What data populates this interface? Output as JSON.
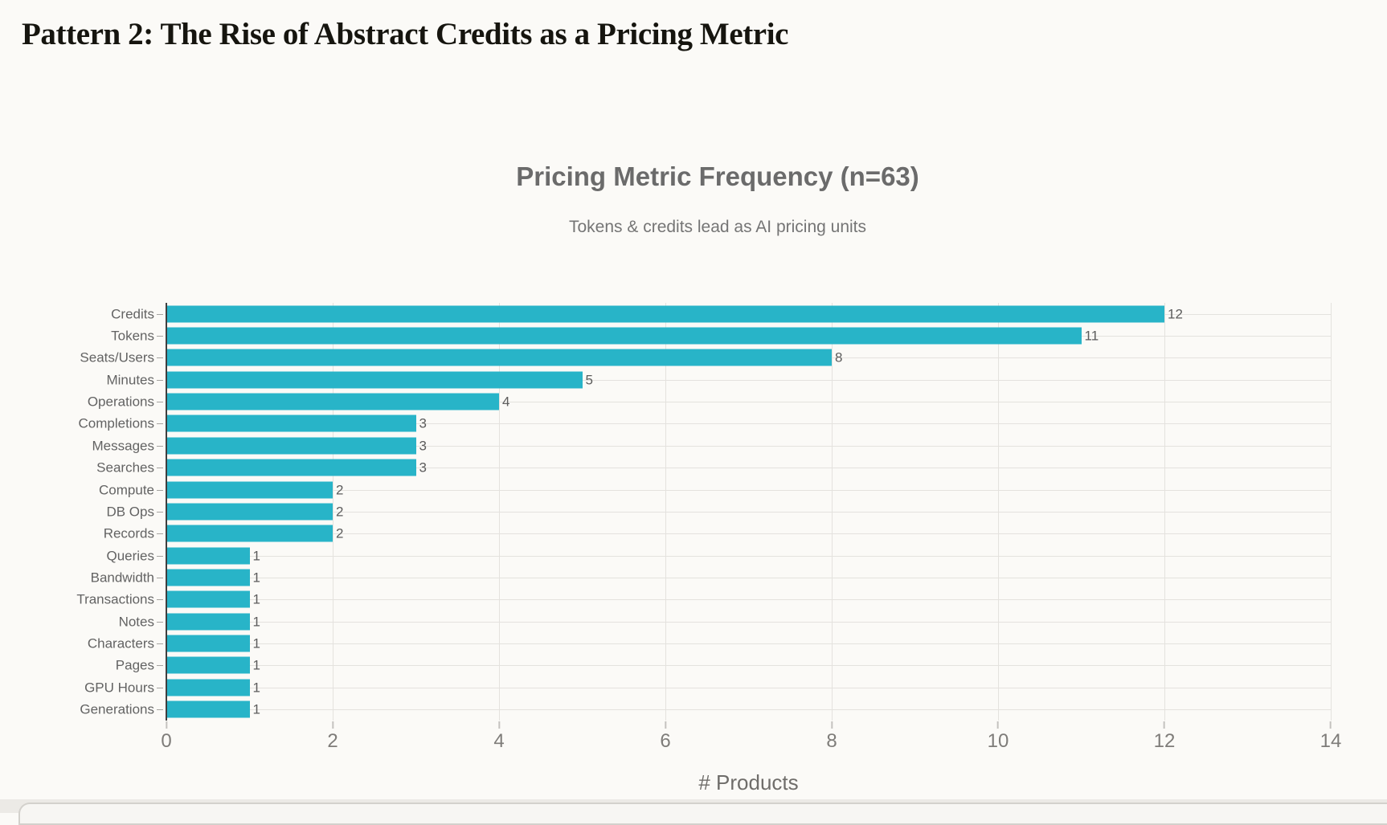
{
  "page": {
    "heading": "Pattern 2: The Rise of Abstract Credits as a Pricing Metric"
  },
  "chart": {
    "title": "Pricing Metric Frequency (n=63)",
    "subtitle": "Tokens & credits lead as AI pricing units",
    "xlabel": "# Products"
  },
  "chart_data": {
    "type": "bar",
    "orientation": "horizontal",
    "title": "Pricing Metric Frequency (n=63)",
    "subtitle": "Tokens & credits lead as AI pricing units",
    "xlabel": "# Products",
    "ylabel": "",
    "categories": [
      "Credits",
      "Tokens",
      "Seats/Users",
      "Minutes",
      "Operations",
      "Completions",
      "Messages",
      "Searches",
      "Compute",
      "DB Ops",
      "Records",
      "Queries",
      "Bandwidth",
      "Transactions",
      "Notes",
      "Characters",
      "Pages",
      "GPU Hours",
      "Generations"
    ],
    "values": [
      12,
      11,
      8,
      5,
      4,
      3,
      3,
      3,
      2,
      2,
      2,
      1,
      1,
      1,
      1,
      1,
      1,
      1,
      1
    ],
    "xlim": [
      0,
      14
    ],
    "xticks": [
      0,
      2,
      4,
      6,
      8,
      10,
      12,
      14
    ],
    "grid": true,
    "value_labels": true,
    "legend": "none",
    "bar_color": "#28B4C8"
  },
  "colors": {
    "background": "#FBFAF7",
    "bar": "#28B4C8",
    "grid": "#E4E2DE",
    "axis_spine": "#3F3F3F",
    "title_text": "#6B6B6B",
    "subtitle_text": "#757575",
    "x_tick_text": "#7E7C79",
    "category_text": "#636363",
    "value_text": "#5C5C5C"
  }
}
